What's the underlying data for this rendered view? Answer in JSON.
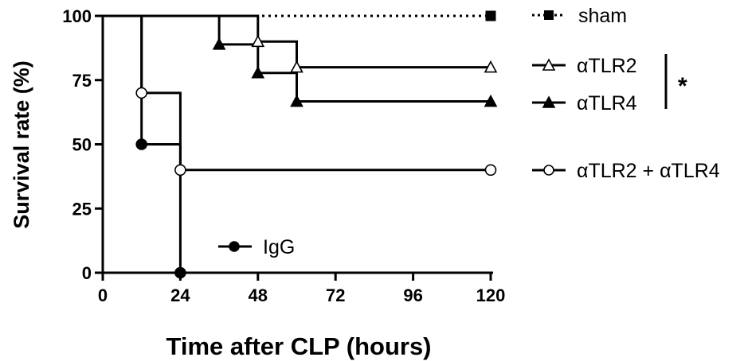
{
  "chart_data": {
    "type": "line",
    "subtype": "kaplan-meier survival curve",
    "title": "",
    "xlabel": "Time after CLP (hours)",
    "ylabel": "Survival rate (%)",
    "xlim": [
      0,
      120
    ],
    "ylim": [
      0,
      100
    ],
    "xticks": [
      0,
      24,
      48,
      72,
      96,
      120
    ],
    "yticks": [
      0,
      25,
      50,
      75,
      100
    ],
    "grid": false,
    "legend_position": "right",
    "series": [
      {
        "name": "sham",
        "marker": "square-filled",
        "line_style": "dotted",
        "steps": [
          [
            0,
            100
          ],
          [
            120,
            100
          ]
        ],
        "markers": [
          [
            120,
            100
          ]
        ]
      },
      {
        "name": "αTLR2",
        "marker": "triangle-open",
        "line_style": "solid",
        "steps": [
          [
            0,
            100
          ],
          [
            48,
            90
          ],
          [
            60,
            80
          ],
          [
            120,
            80
          ]
        ],
        "markers": [
          [
            48,
            90
          ],
          [
            60,
            80
          ],
          [
            120,
            80
          ]
        ]
      },
      {
        "name": "αTLR4",
        "marker": "triangle-filled",
        "line_style": "solid",
        "steps": [
          [
            0,
            100
          ],
          [
            36,
            88.9
          ],
          [
            48,
            77.8
          ],
          [
            60,
            66.7
          ],
          [
            120,
            66.7
          ]
        ],
        "markers": [
          [
            36,
            88.9
          ],
          [
            48,
            77.8
          ],
          [
            60,
            66.7
          ],
          [
            120,
            66.7
          ]
        ]
      },
      {
        "name": "αTLR2 + αTLR4",
        "marker": "circle-open",
        "line_style": "solid",
        "steps": [
          [
            0,
            100
          ],
          [
            12,
            70
          ],
          [
            24,
            40
          ],
          [
            120,
            40
          ]
        ],
        "markers": [
          [
            12,
            70
          ],
          [
            24,
            40
          ],
          [
            120,
            40
          ]
        ]
      },
      {
        "name": "IgG",
        "marker": "circle-filled",
        "line_style": "solid",
        "steps": [
          [
            0,
            100
          ],
          [
            12,
            50
          ],
          [
            24,
            0
          ]
        ],
        "markers": [
          [
            12,
            50
          ],
          [
            24,
            0
          ]
        ]
      }
    ],
    "annotations": [
      {
        "text": "*",
        "applies_to": [
          "αTLR2",
          "αTLR4"
        ]
      }
    ]
  }
}
